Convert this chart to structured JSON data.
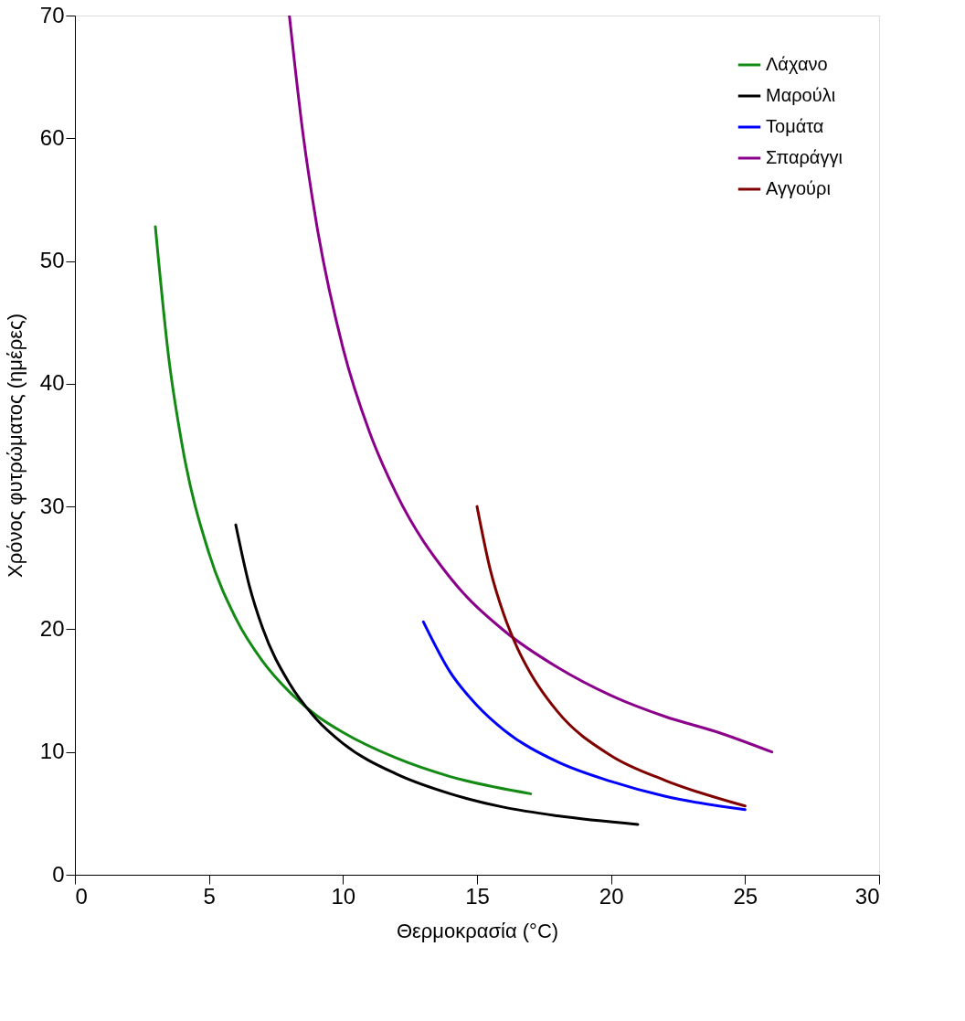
{
  "chart_data": {
    "type": "line",
    "xlabel": "Θερμοκρασία (°C)",
    "ylabel": "Χρόνος  φυτρώματος (ημέρες)",
    "xlim": [
      0,
      30
    ],
    "ylim": [
      0,
      70
    ],
    "xticks": [
      0,
      5,
      10,
      15,
      20,
      25,
      30
    ],
    "yticks": [
      0,
      10,
      20,
      30,
      40,
      50,
      60,
      70
    ],
    "grid": false,
    "legend": "top right",
    "marker": "none",
    "line_style": "solid",
    "series": [
      {
        "name": "Λάχανο",
        "color": "#138a13",
        "x": [
          3,
          3.5,
          4,
          5,
          6,
          7,
          8,
          9,
          10,
          12,
          14,
          17
        ],
        "values": [
          52.8,
          42.1,
          35.0,
          26.2,
          20.9,
          17.4,
          14.9,
          13.0,
          11.6,
          9.5,
          8.0,
          6.6
        ]
      },
      {
        "name": "Μαρούλι",
        "color": "#000000",
        "x": [
          6,
          6.5,
          7,
          8,
          9,
          10,
          12,
          14,
          16,
          18,
          21
        ],
        "values": [
          28.5,
          23.6,
          20.1,
          15.6,
          12.7,
          10.7,
          8.2,
          6.6,
          5.5,
          4.8,
          4.1
        ]
      },
      {
        "name": "Τομάτα",
        "color": "#0000ff",
        "x": [
          13,
          14,
          15,
          16,
          18,
          20,
          22,
          25
        ],
        "values": [
          20.6,
          16.5,
          13.8,
          11.8,
          9.2,
          7.6,
          6.4,
          5.3
        ]
      },
      {
        "name": "Σπαράγγι",
        "color": "#8b008b",
        "x": [
          8,
          8.5,
          9,
          10,
          11,
          12,
          14,
          16,
          18,
          20,
          22,
          24,
          26
        ],
        "values": [
          70,
          60.5,
          53.2,
          42.9,
          36.0,
          31.0,
          24.2,
          19.9,
          16.9,
          14.6,
          12.9,
          11.6,
          10.0
        ]
      },
      {
        "name": "Αγγούρι",
        "color": "#800000",
        "x": [
          15,
          15.5,
          16,
          16.5,
          17,
          18,
          20,
          22,
          25
        ],
        "values": [
          30,
          24.8,
          21.2,
          18.5,
          16.4,
          13.3,
          9.7,
          7.7,
          5.6
        ]
      }
    ]
  }
}
